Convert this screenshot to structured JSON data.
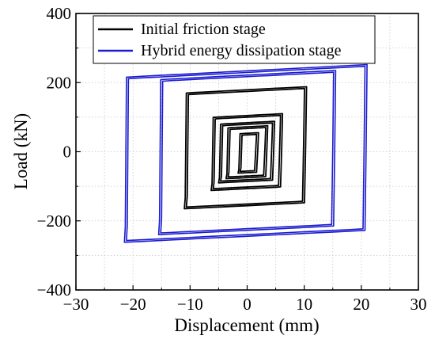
{
  "chart_data": {
    "type": "line",
    "title": "",
    "xlabel": "Displacement (mm)",
    "ylabel": "Load (kN)",
    "xlim": [
      -30,
      30
    ],
    "ylim": [
      -400,
      400
    ],
    "xticks": [
      -30,
      -20,
      -10,
      0,
      10,
      20,
      30
    ],
    "yticks": [
      -400,
      -200,
      0,
      200,
      400
    ],
    "x_tick_labels": [
      "−30",
      "−20",
      "−10",
      "0",
      "10",
      "20",
      "30"
    ],
    "y_tick_labels": [
      "−400",
      "−200",
      "0",
      "200",
      "400"
    ],
    "grid": true,
    "legend_position": "top",
    "series": [
      {
        "name": "Initial friction stage",
        "color": "#000000",
        "loops": [
          {
            "amp_pos": 2.0,
            "amp_neg": -1.6,
            "peak_pos": 55,
            "peak_neg": -62
          },
          {
            "amp_pos": 3.6,
            "amp_neg": -3.7,
            "peak_pos": 75,
            "peak_neg": -78
          },
          {
            "amp_pos": 4.8,
            "amp_neg": -5.0,
            "peak_pos": 88,
            "peak_neg": -90
          },
          {
            "amp_pos": 6.2,
            "amp_neg": -6.3,
            "peak_pos": 110,
            "peak_neg": -112
          },
          {
            "amp_pos": 10.4,
            "amp_neg": -11.0,
            "peak_pos": 188,
            "peak_neg": -165
          }
        ]
      },
      {
        "name": "Hybrid energy dissipation stage",
        "color": "#1a1ad0",
        "loops": [
          {
            "amp_pos": 15.5,
            "amp_neg": -15.5,
            "peak_pos": 235,
            "peak_neg": -240
          },
          {
            "amp_pos": 21.0,
            "amp_neg": -21.5,
            "peak_pos": 252,
            "peak_neg": -262
          }
        ]
      }
    ]
  }
}
